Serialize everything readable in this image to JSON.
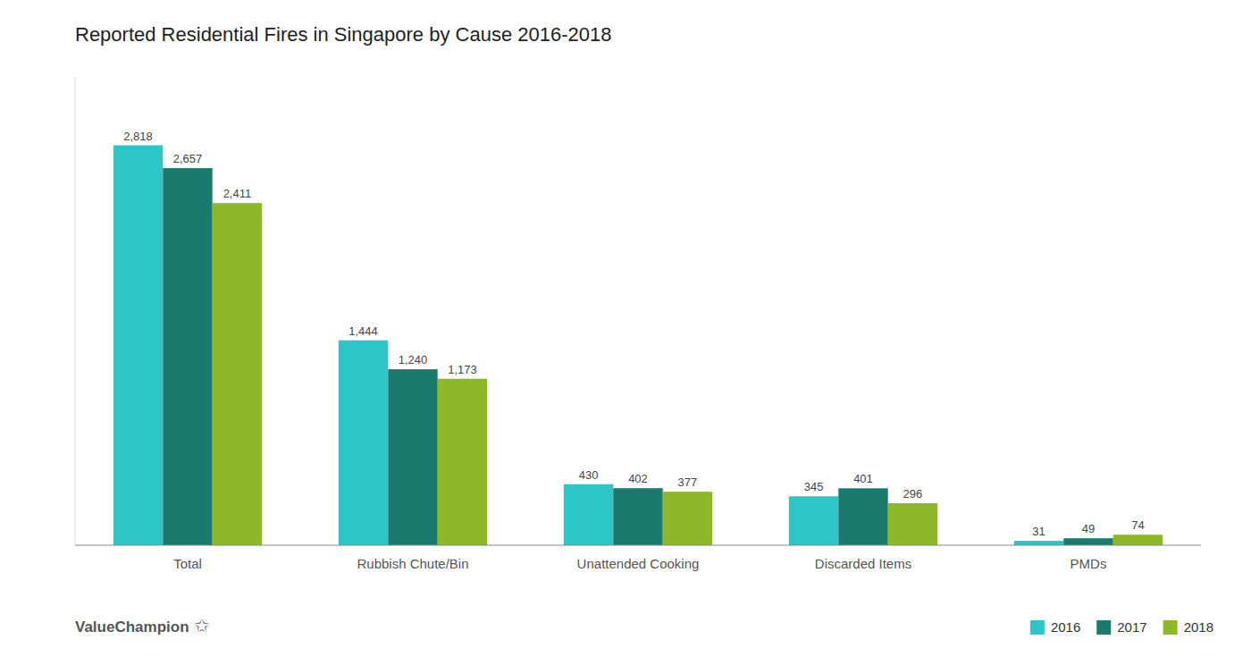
{
  "chart_data": {
    "type": "bar",
    "title": "Reported Residential Fires in Singapore by Cause 2016-2018",
    "categories": [
      "Total",
      "Rubbish Chute/Bin",
      "Unattended Cooking",
      "Discarded Items",
      "PMDs"
    ],
    "series": [
      {
        "name": "2016",
        "color": "#2DC6C6",
        "values": [
          2818,
          1444,
          430,
          345,
          31
        ],
        "value_labels": [
          "2,818",
          "1,444",
          "430",
          "345",
          "31"
        ]
      },
      {
        "name": "2017",
        "color": "#1A7A6E",
        "values": [
          2657,
          1240,
          402,
          401,
          49
        ],
        "value_labels": [
          "2,657",
          "1,240",
          "402",
          "401",
          "49"
        ]
      },
      {
        "name": "2018",
        "color": "#8DB82A",
        "values": [
          2411,
          1173,
          377,
          296,
          74
        ],
        "value_labels": [
          "2,411",
          "1,173",
          "377",
          "296",
          "74"
        ]
      }
    ],
    "ylim": [
      0,
      3300
    ],
    "yticks": [],
    "tick_labels": "x",
    "grid": false,
    "legend": "lower right",
    "data_labels": true,
    "annotations": [
      "ValueChampion",
      "✩"
    ]
  }
}
